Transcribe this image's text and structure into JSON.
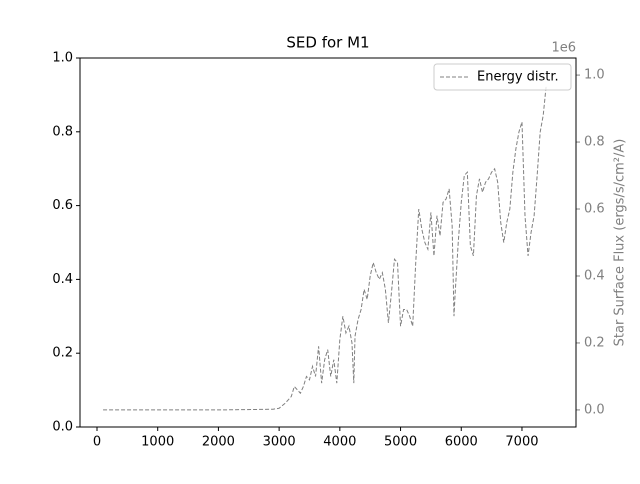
{
  "chart_data": {
    "type": "line",
    "title": "SED for M1",
    "x": [
      100,
      1000,
      2000,
      2900,
      3000,
      3100,
      3200,
      3250,
      3300,
      3350,
      3400,
      3450,
      3500,
      3550,
      3600,
      3650,
      3700,
      3750,
      3800,
      3850,
      3900,
      3950,
      4000,
      4050,
      4100,
      4150,
      4200,
      4230,
      4250,
      4300,
      4350,
      4400,
      4450,
      4500,
      4550,
      4600,
      4650,
      4700,
      4750,
      4800,
      4850,
      4900,
      4950,
      5000,
      5050,
      5100,
      5150,
      5200,
      5250,
      5300,
      5350,
      5400,
      5450,
      5500,
      5550,
      5600,
      5650,
      5700,
      5750,
      5800,
      5850,
      5880,
      5900,
      5950,
      6000,
      6050,
      6100,
      6150,
      6200,
      6250,
      6300,
      6350,
      6400,
      6450,
      6500,
      6550,
      6600,
      6650,
      6700,
      6750,
      6800,
      6850,
      6900,
      6950,
      7000,
      7050,
      7100,
      7150,
      7200,
      7250,
      7300,
      7350,
      7400
    ],
    "series": [
      {
        "name": "Energy distr.",
        "color": "#808080",
        "axis": "y2",
        "dashed": true,
        "values": [
          0,
          0,
          0,
          2000,
          5000,
          20000,
          40000,
          70000,
          60000,
          50000,
          70000,
          100000,
          90000,
          130000,
          100000,
          190000,
          80000,
          150000,
          180000,
          100000,
          150000,
          80000,
          210000,
          280000,
          230000,
          250000,
          200000,
          80000,
          220000,
          270000,
          300000,
          360000,
          330000,
          400000,
          440000,
          410000,
          390000,
          410000,
          360000,
          260000,
          350000,
          450000,
          440000,
          250000,
          300000,
          300000,
          280000,
          250000,
          440000,
          600000,
          540000,
          500000,
          480000,
          590000,
          460000,
          580000,
          520000,
          620000,
          630000,
          660000,
          550000,
          280000,
          350000,
          500000,
          620000,
          700000,
          710000,
          490000,
          460000,
          640000,
          690000,
          650000,
          680000,
          690000,
          710000,
          720000,
          680000,
          560000,
          500000,
          560000,
          600000,
          710000,
          780000,
          830000,
          860000,
          580000,
          460000,
          530000,
          580000,
          700000,
          830000,
          880000,
          970000
        ]
      }
    ],
    "xlim": [
      -280,
      7890
    ],
    "xticks": [
      0,
      1000,
      2000,
      3000,
      4000,
      5000,
      6000,
      7000
    ],
    "ylim": [
      0,
      1
    ],
    "yticks": [
      {
        "value": 0,
        "label": "0.0"
      },
      {
        "value": 0.2,
        "label": "0.2"
      },
      {
        "value": 0.4,
        "label": "0.4"
      },
      {
        "value": 0.6,
        "label": "0.6"
      },
      {
        "value": 0.8,
        "label": "0.8"
      },
      {
        "value": 1,
        "label": "1.0"
      }
    ],
    "y2lim": [
      -51000,
      1051000
    ],
    "y2ticks": [
      {
        "value": 0,
        "label": "0.0"
      },
      {
        "value": 200000,
        "label": "0.2"
      },
      {
        "value": 400000,
        "label": "0.4"
      },
      {
        "value": 600000,
        "label": "0.6"
      },
      {
        "value": 800000,
        "label": "0.8"
      },
      {
        "value": 1000000,
        "label": "1.0"
      }
    ],
    "y2_offset_label": "1e6",
    "y2label": "Star Surface Flux (ergs/s/cm²/A)",
    "y2color": "#808080",
    "legend": "upper right"
  }
}
